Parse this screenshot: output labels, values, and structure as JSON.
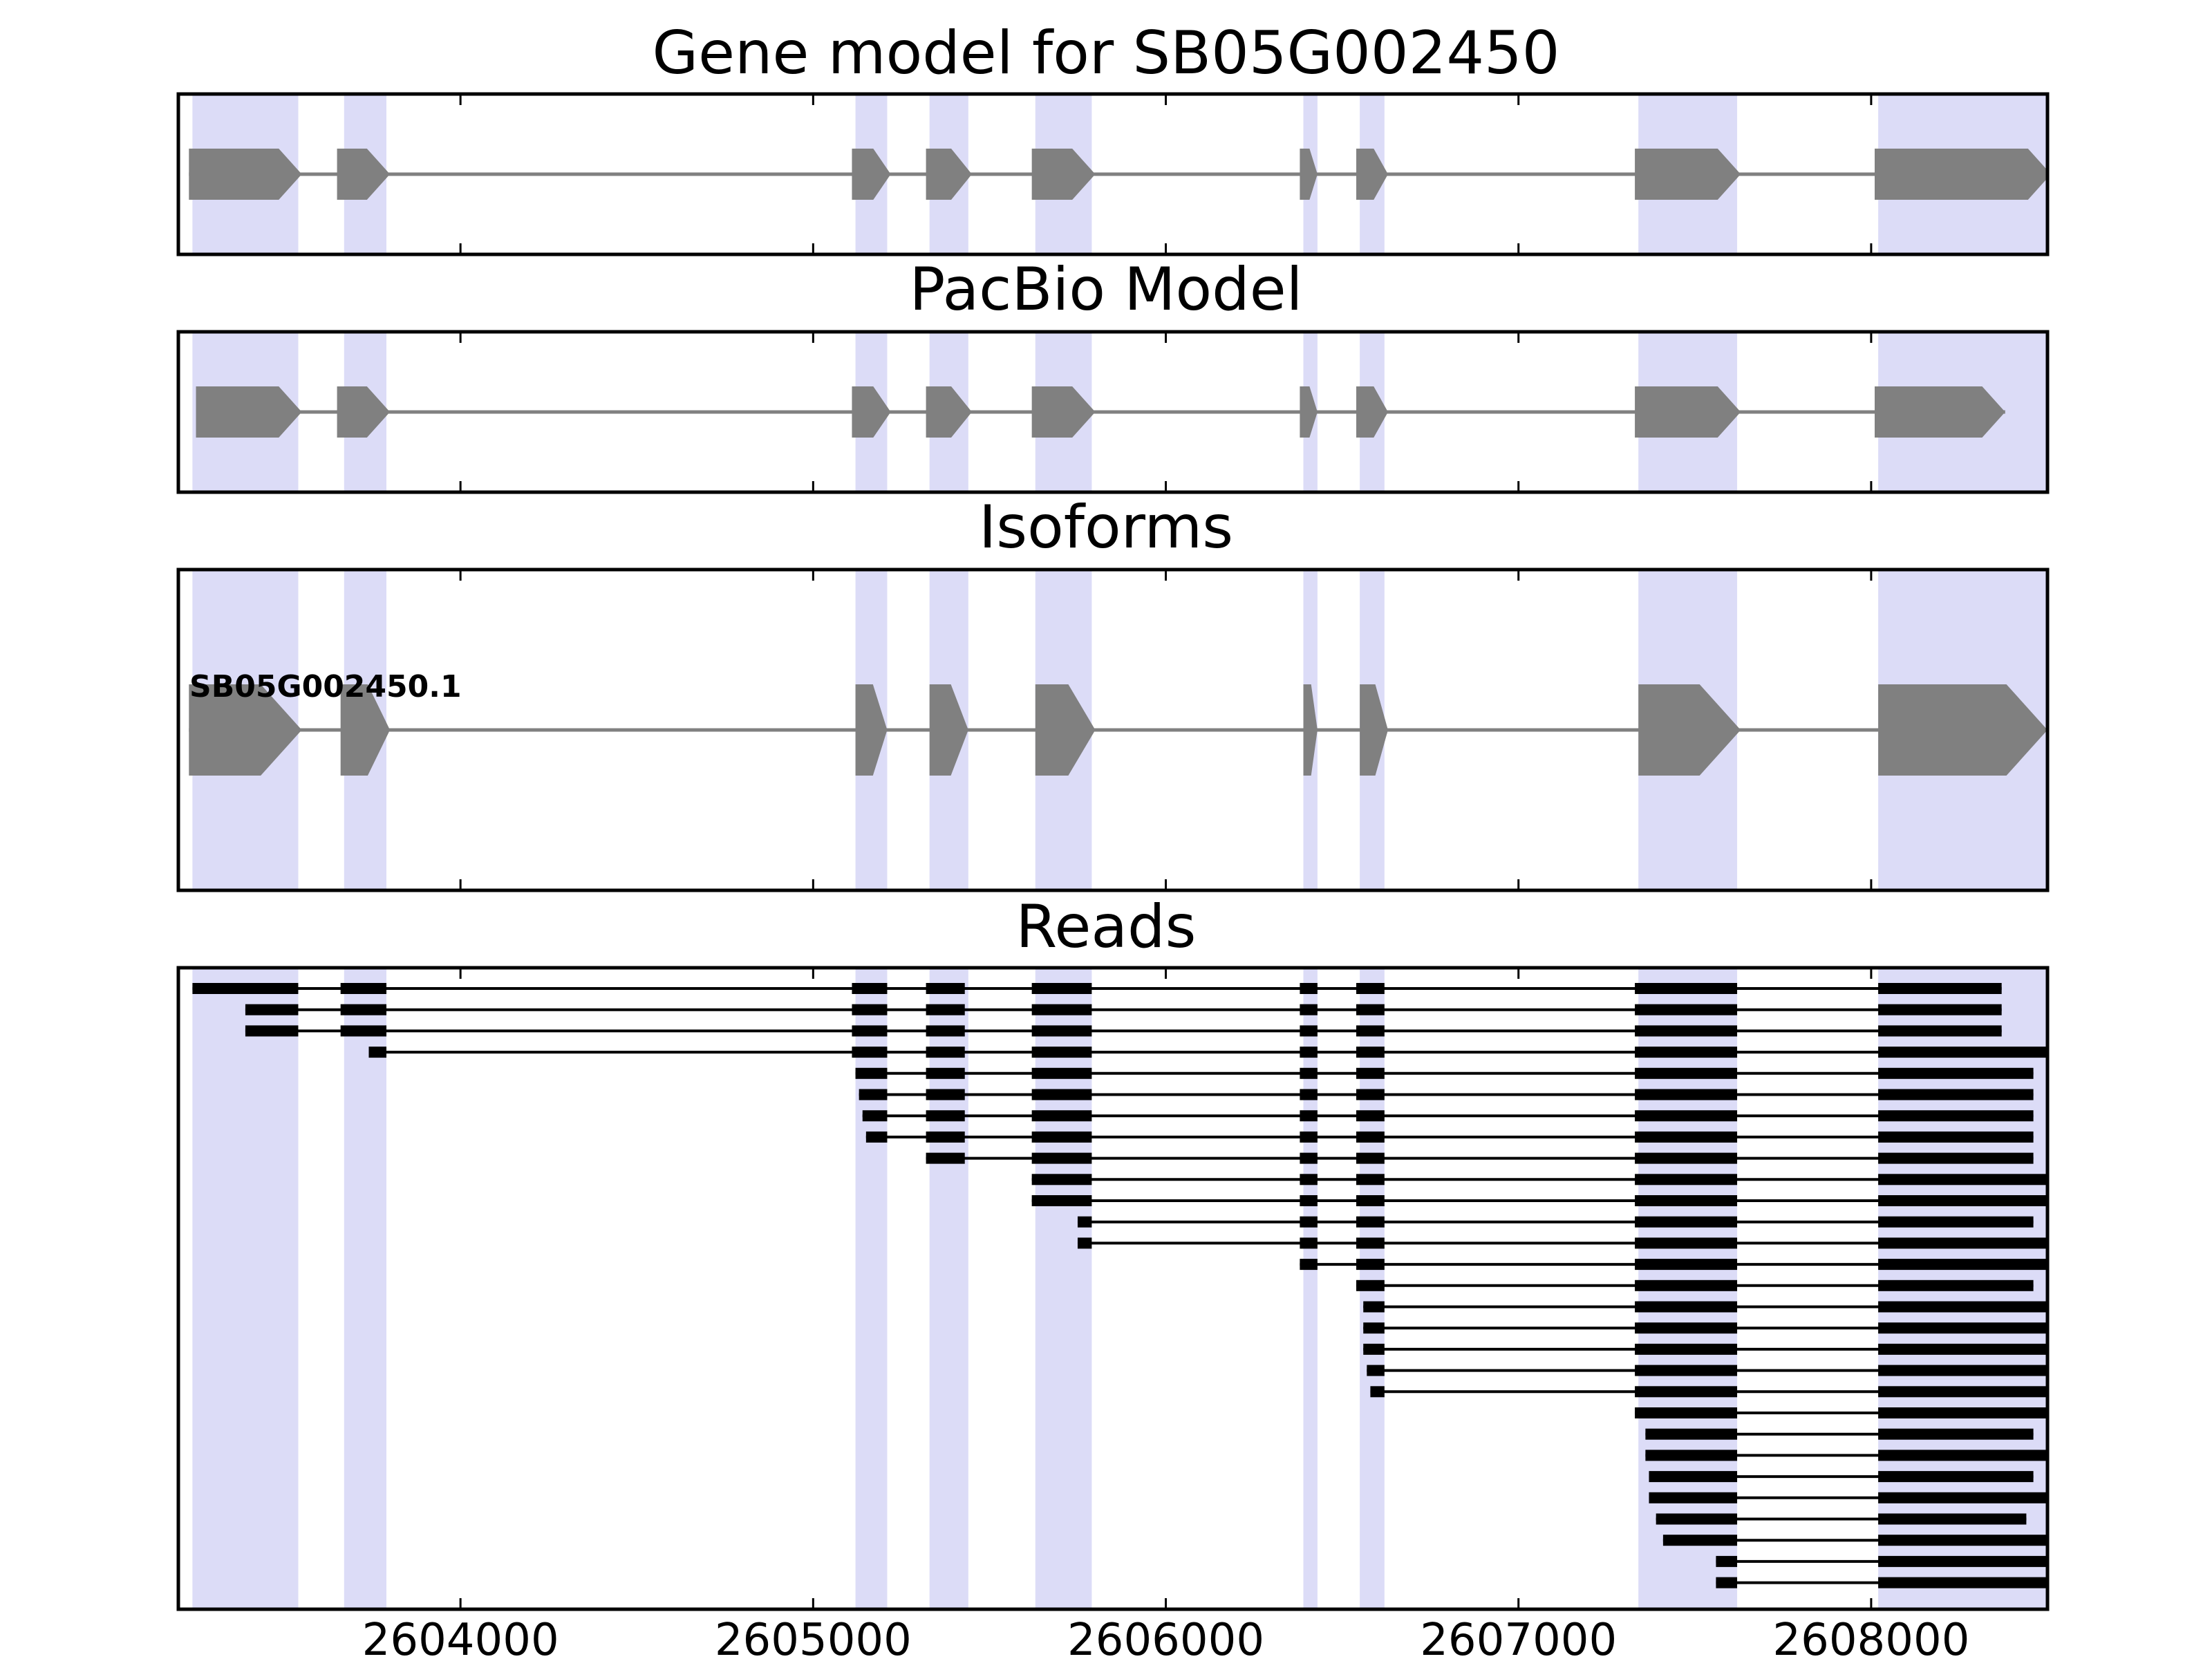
{
  "chart_data": {
    "type": "gene-structure",
    "x_range": [
      2603200,
      2608500
    ],
    "x_ticks": [
      2604000,
      2605000,
      2606000,
      2607000,
      2608000
    ],
    "x_tick_labels": [
      "2604000",
      "2605000",
      "2606000",
      "2607000",
      "2608000"
    ],
    "colors": {
      "exon": "#808080",
      "intron": "#808080",
      "highlight": "#dcdcf7",
      "read": "#000000",
      "frame": "#000000"
    },
    "highlight_regions": [
      [
        2603240,
        2603540
      ],
      [
        2603670,
        2603790
      ],
      [
        2605120,
        2605210
      ],
      [
        2605330,
        2605440
      ],
      [
        2605630,
        2605790
      ],
      [
        2606390,
        2606430
      ],
      [
        2606550,
        2606620
      ],
      [
        2607340,
        2607620
      ],
      [
        2608020,
        2608500
      ]
    ],
    "panels": [
      {
        "title": "Gene model for SB05G002450",
        "exons": [
          [
            2603230,
            2603550
          ],
          [
            2603650,
            2603800
          ],
          [
            2605110,
            2605220
          ],
          [
            2605320,
            2605450
          ],
          [
            2605620,
            2605800
          ],
          [
            2606380,
            2606430
          ],
          [
            2606540,
            2606630
          ],
          [
            2607330,
            2607630
          ],
          [
            2608010,
            2608510
          ]
        ]
      },
      {
        "title": "PacBio Model",
        "exons": [
          [
            2603250,
            2603550
          ],
          [
            2603650,
            2603800
          ],
          [
            2605110,
            2605220
          ],
          [
            2605320,
            2605450
          ],
          [
            2605620,
            2605800
          ],
          [
            2606380,
            2606430
          ],
          [
            2606540,
            2606630
          ],
          [
            2607330,
            2607630
          ],
          [
            2608010,
            2608380
          ]
        ]
      },
      {
        "title": "Isoforms",
        "isoforms": [
          {
            "name": "SB05G002450.1",
            "exons": [
              [
                2603230,
                2603550
              ],
              [
                2603660,
                2603800
              ],
              [
                2605120,
                2605210
              ],
              [
                2605330,
                2605440
              ],
              [
                2605630,
                2605800
              ],
              [
                2606390,
                2606430
              ],
              [
                2606550,
                2606630
              ],
              [
                2607340,
                2607630
              ],
              [
                2608020,
                2608500
              ]
            ]
          }
        ]
      },
      {
        "title": "Reads",
        "reads": [
          [
            [
              2603240,
              2603540
            ],
            [
              2603660,
              2603790
            ],
            [
              2605110,
              2605210
            ],
            [
              2605320,
              2605430
            ],
            [
              2605620,
              2605790
            ],
            [
              2606380,
              2606430
            ],
            [
              2606540,
              2606620
            ],
            [
              2607330,
              2607620
            ],
            [
              2608020,
              2608370
            ]
          ],
          [
            [
              2603390,
              2603540
            ],
            [
              2603660,
              2603790
            ],
            [
              2605110,
              2605210
            ],
            [
              2605320,
              2605430
            ],
            [
              2605620,
              2605790
            ],
            [
              2606380,
              2606430
            ],
            [
              2606540,
              2606620
            ],
            [
              2607330,
              2607620
            ],
            [
              2608020,
              2608370
            ]
          ],
          [
            [
              2603390,
              2603540
            ],
            [
              2603660,
              2603790
            ],
            [
              2605110,
              2605210
            ],
            [
              2605320,
              2605430
            ],
            [
              2605620,
              2605790
            ],
            [
              2606380,
              2606430
            ],
            [
              2606540,
              2606620
            ],
            [
              2607330,
              2607620
            ],
            [
              2608020,
              2608370
            ]
          ],
          [
            [
              2603740,
              2603790
            ],
            [
              2605110,
              2605210
            ],
            [
              2605320,
              2605430
            ],
            [
              2605620,
              2605790
            ],
            [
              2606380,
              2606430
            ],
            [
              2606540,
              2606620
            ],
            [
              2607330,
              2607620
            ],
            [
              2608020,
              2608540
            ]
          ],
          [
            [
              2605120,
              2605210
            ],
            [
              2605320,
              2605430
            ],
            [
              2605620,
              2605790
            ],
            [
              2606380,
              2606430
            ],
            [
              2606540,
              2606620
            ],
            [
              2607330,
              2607620
            ],
            [
              2608020,
              2608460
            ]
          ],
          [
            [
              2605130,
              2605210
            ],
            [
              2605320,
              2605430
            ],
            [
              2605620,
              2605790
            ],
            [
              2606380,
              2606430
            ],
            [
              2606540,
              2606620
            ],
            [
              2607330,
              2607620
            ],
            [
              2608020,
              2608460
            ]
          ],
          [
            [
              2605140,
              2605210
            ],
            [
              2605320,
              2605430
            ],
            [
              2605620,
              2605790
            ],
            [
              2606380,
              2606430
            ],
            [
              2606540,
              2606620
            ],
            [
              2607330,
              2607620
            ],
            [
              2608020,
              2608460
            ]
          ],
          [
            [
              2605150,
              2605210
            ],
            [
              2605320,
              2605430
            ],
            [
              2605620,
              2605790
            ],
            [
              2606380,
              2606430
            ],
            [
              2606540,
              2606620
            ],
            [
              2607330,
              2607620
            ],
            [
              2608020,
              2608460
            ]
          ],
          [
            [
              2605320,
              2605430
            ],
            [
              2605620,
              2605790
            ],
            [
              2606380,
              2606430
            ],
            [
              2606540,
              2606620
            ],
            [
              2607330,
              2607620
            ],
            [
              2608020,
              2608460
            ]
          ],
          [
            [
              2605620,
              2605790
            ],
            [
              2606380,
              2606430
            ],
            [
              2606540,
              2606620
            ],
            [
              2607330,
              2607620
            ],
            [
              2608020,
              2608540
            ]
          ],
          [
            [
              2605620,
              2605790
            ],
            [
              2606380,
              2606430
            ],
            [
              2606540,
              2606620
            ],
            [
              2607330,
              2607620
            ],
            [
              2608020,
              2608540
            ]
          ],
          [
            [
              2605750,
              2605790
            ],
            [
              2606380,
              2606430
            ],
            [
              2606540,
              2606620
            ],
            [
              2607330,
              2607620
            ],
            [
              2608020,
              2608460
            ]
          ],
          [
            [
              2605750,
              2605790
            ],
            [
              2606380,
              2606430
            ],
            [
              2606540,
              2606620
            ],
            [
              2607330,
              2607620
            ],
            [
              2608020,
              2608540
            ]
          ],
          [
            [
              2606380,
              2606430
            ],
            [
              2606540,
              2606620
            ],
            [
              2607330,
              2607620
            ],
            [
              2608020,
              2608540
            ]
          ],
          [
            [
              2606540,
              2606620
            ],
            [
              2607330,
              2607620
            ],
            [
              2608020,
              2608460
            ]
          ],
          [
            [
              2606560,
              2606620
            ],
            [
              2607330,
              2607620
            ],
            [
              2608020,
              2608500
            ]
          ],
          [
            [
              2606560,
              2606620
            ],
            [
              2607330,
              2607620
            ],
            [
              2608020,
              2608540
            ]
          ],
          [
            [
              2606560,
              2606620
            ],
            [
              2607330,
              2607620
            ],
            [
              2608020,
              2608540
            ]
          ],
          [
            [
              2606570,
              2606620
            ],
            [
              2607330,
              2607620
            ],
            [
              2608020,
              2608500
            ]
          ],
          [
            [
              2606580,
              2606620
            ],
            [
              2607330,
              2607620
            ],
            [
              2608020,
              2608500
            ]
          ],
          [
            [
              2607330,
              2607620
            ],
            [
              2608020,
              2608540
            ]
          ],
          [
            [
              2607360,
              2607620
            ],
            [
              2608020,
              2608460
            ]
          ],
          [
            [
              2607360,
              2607620
            ],
            [
              2608020,
              2608540
            ]
          ],
          [
            [
              2607370,
              2607620
            ],
            [
              2608020,
              2608460
            ]
          ],
          [
            [
              2607370,
              2607620
            ],
            [
              2608020,
              2608540
            ]
          ],
          [
            [
              2607390,
              2607620
            ],
            [
              2608020,
              2608440
            ]
          ],
          [
            [
              2607410,
              2607620
            ],
            [
              2608020,
              2608540
            ]
          ],
          [
            [
              2607560,
              2607620
            ],
            [
              2608020,
              2608540
            ]
          ],
          [
            [
              2607560,
              2607620
            ],
            [
              2608020,
              2608540
            ]
          ]
        ]
      }
    ]
  }
}
